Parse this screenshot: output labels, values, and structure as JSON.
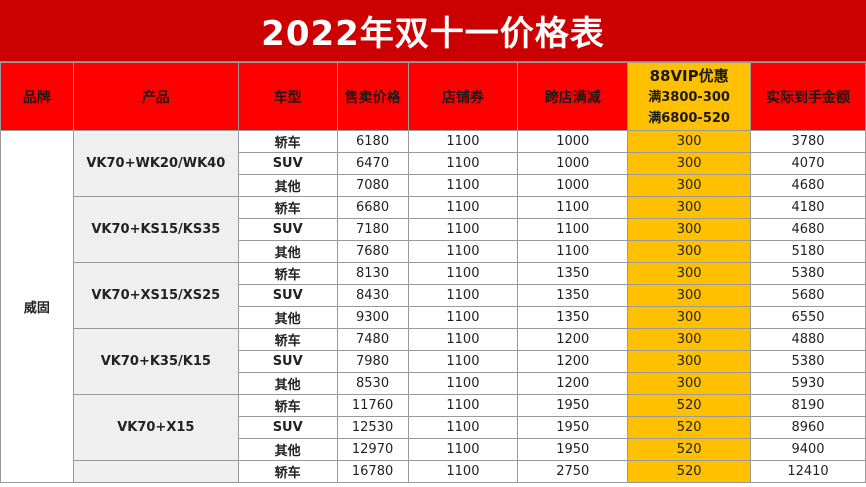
{
  "title": "2022年双十一价格表",
  "headers": {
    "brand": "品牌",
    "product": "产品",
    "type": "车型",
    "price": "售卖价格",
    "store_coupon": "店铺券",
    "cross_store": "跨店满减",
    "vip_title": "88VIP优惠",
    "vip_line1": "满3800-300",
    "vip_line2": "满6800-520",
    "final": "实际到手金额"
  },
  "brand": "威固",
  "groups": [
    {
      "product": "VK70+WK20/WK40",
      "rows": [
        {
          "type": "轿车",
          "price": "6180",
          "store_coupon": "1100",
          "cross_store": "1000",
          "vip": "300",
          "final": "3780"
        },
        {
          "type": "SUV",
          "price": "6470",
          "store_coupon": "1100",
          "cross_store": "1000",
          "vip": "300",
          "final": "4070"
        },
        {
          "type": "其他",
          "price": "7080",
          "store_coupon": "1100",
          "cross_store": "1000",
          "vip": "300",
          "final": "4680"
        }
      ]
    },
    {
      "product": "VK70+KS15/KS35",
      "rows": [
        {
          "type": "轿车",
          "price": "6680",
          "store_coupon": "1100",
          "cross_store": "1100",
          "vip": "300",
          "final": "4180"
        },
        {
          "type": "SUV",
          "price": "7180",
          "store_coupon": "1100",
          "cross_store": "1100",
          "vip": "300",
          "final": "4680"
        },
        {
          "type": "其他",
          "price": "7680",
          "store_coupon": "1100",
          "cross_store": "1100",
          "vip": "300",
          "final": "5180"
        }
      ]
    },
    {
      "product": "VK70+XS15/XS25",
      "rows": [
        {
          "type": "轿车",
          "price": "8130",
          "store_coupon": "1100",
          "cross_store": "1350",
          "vip": "300",
          "final": "5380"
        },
        {
          "type": "SUV",
          "price": "8430",
          "store_coupon": "1100",
          "cross_store": "1350",
          "vip": "300",
          "final": "5680"
        },
        {
          "type": "其他",
          "price": "9300",
          "store_coupon": "1100",
          "cross_store": "1350",
          "vip": "300",
          "final": "6550"
        }
      ]
    },
    {
      "product": "VK70+K35/K15",
      "rows": [
        {
          "type": "轿车",
          "price": "7480",
          "store_coupon": "1100",
          "cross_store": "1200",
          "vip": "300",
          "final": "4880"
        },
        {
          "type": "SUV",
          "price": "7980",
          "store_coupon": "1100",
          "cross_store": "1200",
          "vip": "300",
          "final": "5380"
        },
        {
          "type": "其他",
          "price": "8530",
          "store_coupon": "1100",
          "cross_store": "1200",
          "vip": "300",
          "final": "5930"
        }
      ]
    },
    {
      "product": "VK70+X15",
      "rows": [
        {
          "type": "轿车",
          "price": "11760",
          "store_coupon": "1100",
          "cross_store": "1950",
          "vip": "520",
          "final": "8190"
        },
        {
          "type": "SUV",
          "price": "12530",
          "store_coupon": "1100",
          "cross_store": "1950",
          "vip": "520",
          "final": "8960"
        },
        {
          "type": "其他",
          "price": "12970",
          "store_coupon": "1100",
          "cross_store": "1950",
          "vip": "520",
          "final": "9400"
        }
      ]
    },
    {
      "product": "",
      "rows": [
        {
          "type": "轿车",
          "price": "16780",
          "store_coupon": "1100",
          "cross_store": "2750",
          "vip": "520",
          "final": "12410"
        }
      ]
    }
  ],
  "colors": {
    "title_bg": "#cc0000",
    "header_bg": "#ff0000",
    "vip_bg": "#ffc000",
    "product_bg": "#efefef"
  }
}
